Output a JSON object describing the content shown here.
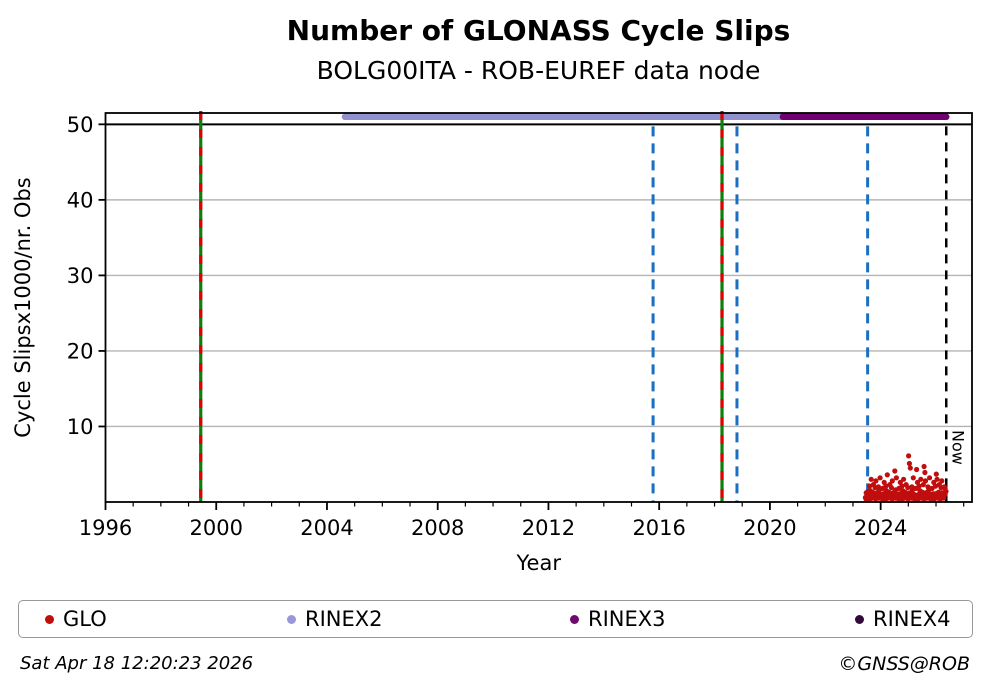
{
  "title": "Number of GLONASS Cycle Slips",
  "subtitle": "BOLG00ITA - ROB-EUREF data node",
  "chart_data": {
    "type": "scatter",
    "axis": {
      "x_min": 1996,
      "x_max": 2027.3,
      "y_min": 0,
      "y_max": 51.5,
      "x_major_ticks": [
        1996,
        2000,
        2004,
        2008,
        2012,
        2016,
        2020,
        2024
      ],
      "x_minor_step": 1,
      "y_ticks": [
        10,
        20,
        30,
        40,
        50
      ],
      "xlabel": "Year",
      "ylabel": "Cycle Slipsx1000/nr. Obs",
      "grid": "horizontal-light",
      "black_line_at_y": 50
    },
    "colors": {
      "glo": "#c00d0d",
      "rinex2": "#9191d0",
      "rinex3": "#730073",
      "rinex4": "#310a3a",
      "blue_dash": "#1b6fc0",
      "green_line": "#0f7d0f",
      "red_dash": "#e30000",
      "grid": "#b4b4b4",
      "now_line": "#000000"
    },
    "bars": [
      {
        "label": "RINEX2",
        "start_year": 2004.65,
        "end_year": 2020.47,
        "y_value": 51,
        "color_key": "rinex2"
      },
      {
        "label": "RINEX3",
        "start_year": 2020.47,
        "end_year": 2026.37,
        "y_value": 51,
        "color_key": "rinex3"
      }
    ],
    "event_lines": [
      {
        "year": 1999.44,
        "kind": "green_red"
      },
      {
        "year": 2015.78,
        "kind": "blue_dashed"
      },
      {
        "year": 2018.27,
        "kind": "green_red"
      },
      {
        "year": 2018.81,
        "kind": "blue_dashed"
      },
      {
        "year": 2023.53,
        "kind": "blue_dashed"
      },
      {
        "year": 2026.37,
        "kind": "now",
        "label": "Now"
      }
    ],
    "series": [
      {
        "name": "GLO",
        "color_key": "glo",
        "points": [
          [
            2023.45,
            0.6
          ],
          [
            2023.48,
            1.2
          ],
          [
            2023.51,
            1.1
          ],
          [
            2023.54,
            1.4
          ],
          [
            2023.57,
            0.9
          ],
          [
            2023.6,
            2.1
          ],
          [
            2023.63,
            1.5
          ],
          [
            2023.66,
            3.0
          ],
          [
            2023.69,
            0.5
          ],
          [
            2023.71,
            1.3
          ],
          [
            2023.74,
            2.3
          ],
          [
            2023.77,
            0.8
          ],
          [
            2023.8,
            1.9
          ],
          [
            2023.83,
            2.8
          ],
          [
            2023.86,
            1.2
          ],
          [
            2023.89,
            0.7
          ],
          [
            2023.92,
            2.0
          ],
          [
            2023.95,
            1.6
          ],
          [
            2023.98,
            3.2
          ],
          [
            2024.01,
            1.0
          ],
          [
            2024.04,
            0.6
          ],
          [
            2024.07,
            1.8
          ],
          [
            2024.1,
            1.1
          ],
          [
            2024.13,
            2.6
          ],
          [
            2024.16,
            0.9
          ],
          [
            2024.19,
            2.1
          ],
          [
            2024.21,
            1.5
          ],
          [
            2024.24,
            3.6
          ],
          [
            2024.27,
            0.5
          ],
          [
            2024.3,
            1.3
          ],
          [
            2024.33,
            2.3
          ],
          [
            2024.36,
            0.8
          ],
          [
            2024.39,
            1.9
          ],
          [
            2024.42,
            2.8
          ],
          [
            2024.45,
            1.2
          ],
          [
            2024.48,
            0.7
          ],
          [
            2024.51,
            4.1
          ],
          [
            2024.54,
            1.6
          ],
          [
            2024.57,
            3.2
          ],
          [
            2024.6,
            1.0
          ],
          [
            2024.63,
            0.6
          ],
          [
            2024.66,
            1.8
          ],
          [
            2024.68,
            1.1
          ],
          [
            2024.71,
            2.6
          ],
          [
            2024.74,
            0.9
          ],
          [
            2024.77,
            2.1
          ],
          [
            2024.8,
            1.5
          ],
          [
            2024.83,
            3.0
          ],
          [
            2024.86,
            0.5
          ],
          [
            2024.89,
            1.3
          ],
          [
            2024.92,
            2.3
          ],
          [
            2024.95,
            0.8
          ],
          [
            2024.98,
            1.9
          ],
          [
            2025.01,
            6.1
          ],
          [
            2025.04,
            5.1
          ],
          [
            2025.07,
            4.5
          ],
          [
            2025.1,
            0.7
          ],
          [
            2025.13,
            2.0
          ],
          [
            2025.15,
            1.6
          ],
          [
            2025.18,
            3.2
          ],
          [
            2025.21,
            1.0
          ],
          [
            2025.24,
            0.6
          ],
          [
            2025.27,
            1.8
          ],
          [
            2025.3,
            4.3
          ],
          [
            2025.33,
            2.6
          ],
          [
            2025.36,
            0.9
          ],
          [
            2025.39,
            2.1
          ],
          [
            2025.42,
            1.5
          ],
          [
            2025.45,
            3.0
          ],
          [
            2025.48,
            0.5
          ],
          [
            2025.51,
            1.3
          ],
          [
            2025.54,
            2.3
          ],
          [
            2025.57,
            4.7
          ],
          [
            2025.6,
            3.9
          ],
          [
            2025.62,
            2.8
          ],
          [
            2025.65,
            1.2
          ],
          [
            2025.68,
            0.7
          ],
          [
            2025.71,
            2.0
          ],
          [
            2025.74,
            1.6
          ],
          [
            2025.77,
            3.2
          ],
          [
            2025.8,
            1.0
          ],
          [
            2025.83,
            0.6
          ],
          [
            2025.86,
            1.8
          ],
          [
            2025.89,
            1.1
          ],
          [
            2025.92,
            2.6
          ],
          [
            2025.95,
            0.9
          ],
          [
            2025.98,
            2.1
          ],
          [
            2026.01,
            3.7
          ],
          [
            2026.04,
            3.0
          ],
          [
            2026.07,
            0.5
          ],
          [
            2026.09,
            1.3
          ],
          [
            2026.12,
            2.3
          ],
          [
            2026.15,
            0.8
          ],
          [
            2026.18,
            1.9
          ],
          [
            2026.21,
            2.8
          ],
          [
            2026.24,
            1.2
          ],
          [
            2026.27,
            0.7
          ],
          [
            2026.3,
            2.0
          ],
          [
            2026.33,
            1.8
          ],
          [
            2026.36,
            1.4
          ],
          [
            2023.47,
            0.4
          ],
          [
            2023.53,
            0.9
          ],
          [
            2023.59,
            0.3
          ],
          [
            2023.65,
            1.1
          ],
          [
            2023.7,
            0.6
          ],
          [
            2023.76,
            0.8
          ],
          [
            2023.82,
            0.4
          ],
          [
            2023.88,
            1.2
          ],
          [
            2023.94,
            0.5
          ],
          [
            2024.0,
            1.0
          ],
          [
            2024.06,
            0.4
          ],
          [
            2024.11,
            0.9
          ],
          [
            2024.17,
            0.3
          ],
          [
            2024.23,
            1.1
          ],
          [
            2024.29,
            0.6
          ],
          [
            2024.35,
            0.8
          ],
          [
            2024.41,
            0.4
          ],
          [
            2024.46,
            1.2
          ],
          [
            2024.52,
            0.5
          ],
          [
            2024.58,
            1.0
          ],
          [
            2024.64,
            0.4
          ],
          [
            2024.7,
            0.9
          ],
          [
            2024.76,
            0.3
          ],
          [
            2024.81,
            1.1
          ],
          [
            2024.87,
            0.6
          ],
          [
            2024.93,
            0.8
          ],
          [
            2024.99,
            0.4
          ],
          [
            2025.05,
            1.2
          ],
          [
            2025.11,
            0.5
          ],
          [
            2025.16,
            1.0
          ],
          [
            2025.22,
            0.4
          ],
          [
            2025.28,
            0.9
          ],
          [
            2025.34,
            0.3
          ],
          [
            2025.4,
            1.1
          ],
          [
            2025.46,
            0.6
          ],
          [
            2025.51,
            0.8
          ],
          [
            2025.57,
            0.4
          ],
          [
            2025.63,
            1.2
          ],
          [
            2025.69,
            0.5
          ],
          [
            2025.75,
            1.0
          ],
          [
            2025.81,
            0.4
          ],
          [
            2025.86,
            0.9
          ],
          [
            2025.92,
            0.3
          ],
          [
            2025.98,
            1.1
          ],
          [
            2026.04,
            0.6
          ],
          [
            2026.1,
            0.8
          ],
          [
            2026.15,
            0.4
          ],
          [
            2026.21,
            1.2
          ],
          [
            2026.27,
            0.5
          ],
          [
            2026.33,
            1.0
          ]
        ]
      }
    ]
  },
  "legend": {
    "items": [
      {
        "label": "GLO",
        "color": "#c00d0d"
      },
      {
        "label": "RINEX2",
        "color": "#9898d8"
      },
      {
        "label": "RINEX3",
        "color": "#6e0a6e"
      },
      {
        "label": "RINEX4",
        "color": "#310a3a"
      }
    ]
  },
  "footer": {
    "timestamp": "Sat Apr 18 12:20:23 2026",
    "credit": "©GNSS@ROB"
  }
}
